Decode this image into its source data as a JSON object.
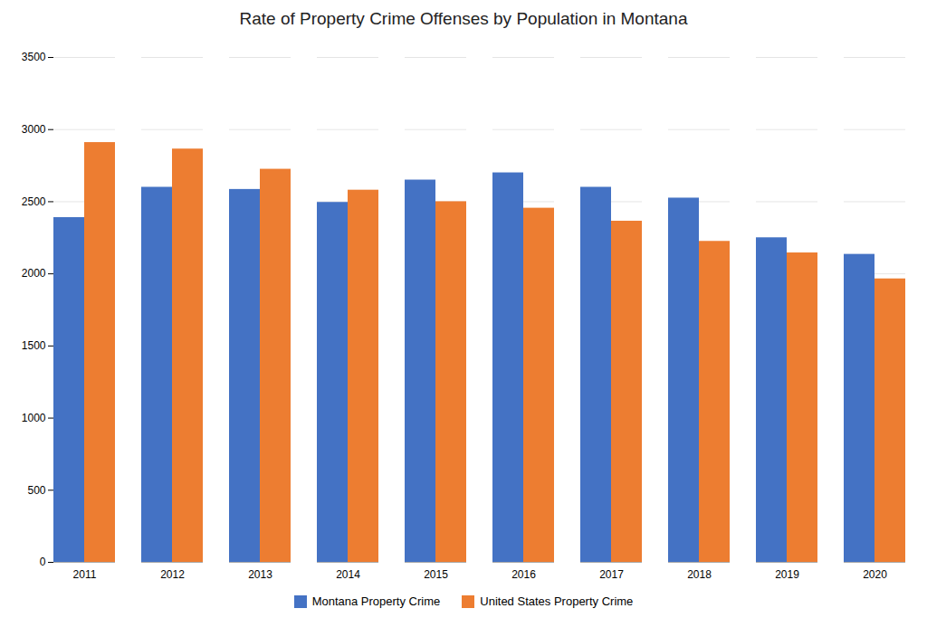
{
  "chart_data": {
    "type": "bar",
    "title": "Rate of Property Crime Offenses by Population in Montana",
    "categories": [
      "2011",
      "2012",
      "2013",
      "2014",
      "2015",
      "2016",
      "2017",
      "2018",
      "2019",
      "2020"
    ],
    "series": [
      {
        "name": "Montana Property Crime",
        "color": "#4472C4",
        "values": [
          2390,
          2600,
          2585,
          2495,
          2650,
          2700,
          2600,
          2525,
          2250,
          2135
        ]
      },
      {
        "name": "United States Property Crime",
        "color": "#ED7D31",
        "values": [
          2910,
          2865,
          2725,
          2580,
          2500,
          2455,
          2365,
          2225,
          2145,
          1965
        ]
      }
    ],
    "ylim": [
      0,
      3500
    ],
    "yticks": [
      0,
      500,
      1000,
      1500,
      2000,
      2500,
      3000,
      3500
    ],
    "grid": true,
    "legend": "bottom"
  }
}
